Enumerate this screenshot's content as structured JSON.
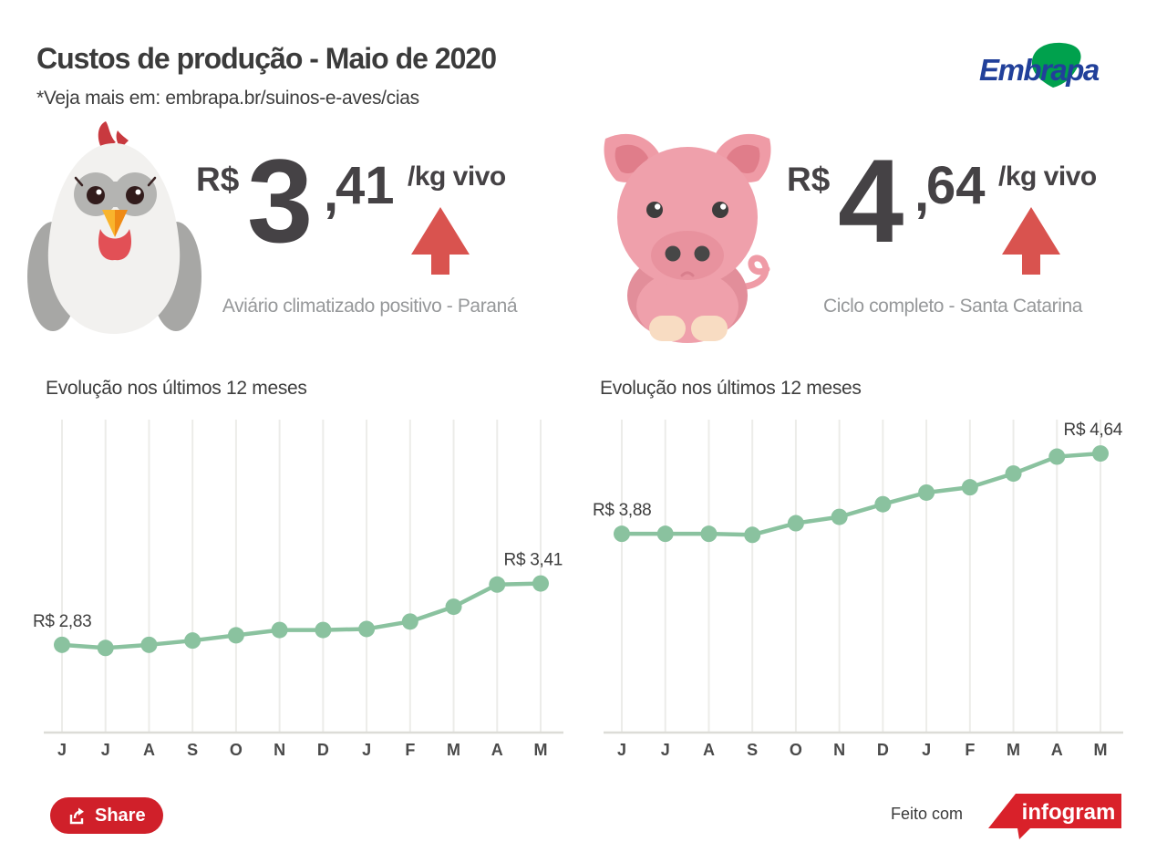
{
  "header": {
    "title": "Custos de produção - Maio de 2020",
    "subtitle": "*Veja mais em: embrapa.br/suinos-e-aves/cias",
    "logo_text": "Embrapa"
  },
  "stats": {
    "chicken": {
      "currency": "R$",
      "integer": "3",
      "comma": ",",
      "fraction": "41",
      "unit": "/kg vivo",
      "trend": "up",
      "caption": "Aviário climatizado positivo - Paraná"
    },
    "pig": {
      "currency": "R$",
      "integer": "4",
      "comma": ",",
      "fraction": "64",
      "unit": "/kg vivo",
      "trend": "up",
      "caption": "Ciclo completo - Santa Catarina"
    }
  },
  "chart_data": [
    {
      "type": "line",
      "title": "Evolução nos últimos 12 meses",
      "categories": [
        "J",
        "J",
        "A",
        "S",
        "O",
        "N",
        "D",
        "J",
        "F",
        "M",
        "A",
        "M"
      ],
      "values": [
        2.83,
        2.8,
        2.83,
        2.87,
        2.92,
        2.97,
        2.97,
        2.98,
        3.05,
        3.19,
        3.4,
        3.41
      ],
      "first_point_label": "R$ 2,83",
      "last_point_label": "R$ 3,41",
      "ylim": [
        2.0,
        4.96
      ],
      "grid": "vertical",
      "legend": "none",
      "line_color": "#8ac29f"
    },
    {
      "type": "line",
      "title": "Evolução nos últimos 12 meses",
      "categories": [
        "J",
        "J",
        "A",
        "S",
        "O",
        "N",
        "D",
        "J",
        "F",
        "M",
        "A",
        "M"
      ],
      "values": [
        3.88,
        3.88,
        3.88,
        3.87,
        3.98,
        4.04,
        4.16,
        4.27,
        4.32,
        4.45,
        4.61,
        4.64
      ],
      "first_point_label": "R$ 3,88",
      "last_point_label": "R$ 4,64",
      "ylim": [
        2.0,
        4.96
      ],
      "grid": "vertical",
      "legend": "none",
      "line_color": "#8ac29f"
    }
  ],
  "footer": {
    "share_label": "Share",
    "made_with": "Feito com",
    "infogram_label": "infogram"
  },
  "colors": {
    "accent_red": "#d9534f",
    "button_red": "#d0202a",
    "infogram_red": "#d9212a",
    "chart_green": "#8ac29f",
    "embrapa_blue": "#21409a",
    "embrapa_green": "#00a14d",
    "text_dark": "#3b3b3b",
    "caption_gray": "#96989a"
  }
}
